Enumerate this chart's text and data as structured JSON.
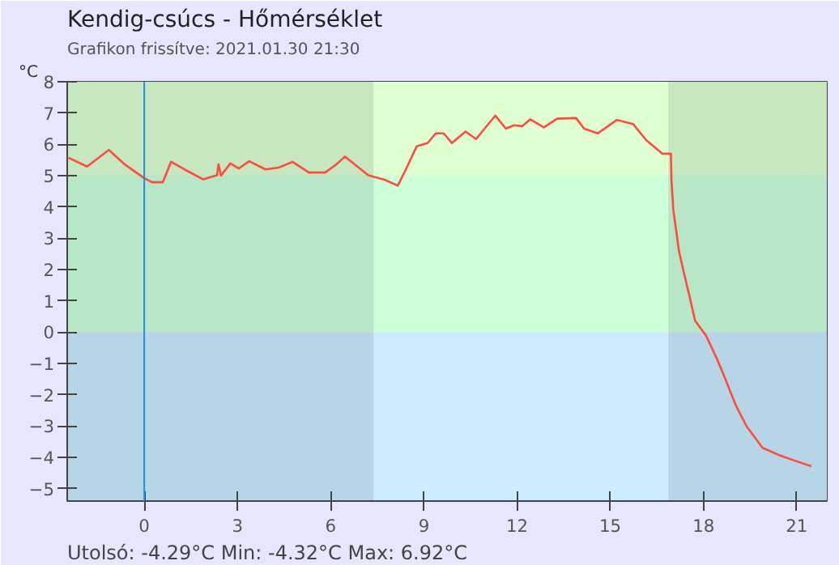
{
  "chart_data": {
    "type": "line",
    "title": "Kendig-csúcs - Hőmérséklet",
    "subtitle": "Grafikon frissítve: 2021.01.30 21:30",
    "ylabel": "°C",
    "annotations": [
      "Utolsó: -4.29°C  Min: -4.32°C  Max: 6.92°C"
    ],
    "x": [
      -2.44,
      -1.84,
      -1.14,
      -0.62,
      0,
      0.25,
      0.6,
      0.86,
      1.29,
      1.9,
      2.34,
      2.39,
      2.47,
      2.77,
      3.04,
      3.38,
      3.9,
      4.34,
      4.77,
      5.3,
      5.82,
      6.17,
      6.46,
      6.86,
      7.21,
      7.73,
      8.16,
      8.42,
      8.77,
      9.12,
      9.38,
      9.64,
      9.9,
      10.34,
      10.68,
      11.3,
      11.64,
      11.9,
      12.16,
      12.42,
      12.86,
      13.29,
      13.9,
      14.16,
      14.6,
      15.21,
      15.73,
      16.16,
      16.68,
      16.95,
      16.97,
      17.03,
      17.21,
      17.38,
      17.56,
      17.73,
      18.08,
      18.43,
      18.69,
      19.04,
      19.38,
      19.9,
      20.43,
      20.94,
      21.47
    ],
    "series": [
      {
        "color": "#ff4a3c",
        "values": [
          5.57,
          5.29,
          5.82,
          5.35,
          4.92,
          4.79,
          4.79,
          5.44,
          5.2,
          4.88,
          5.01,
          5.36,
          5.0,
          5.39,
          5.23,
          5.46,
          5.2,
          5.26,
          5.44,
          5.1,
          5.1,
          5.35,
          5.61,
          5.29,
          5.01,
          4.87,
          4.68,
          5.2,
          5.94,
          6.04,
          6.35,
          6.35,
          6.04,
          6.41,
          6.17,
          6.92,
          6.5,
          6.61,
          6.58,
          6.8,
          6.54,
          6.82,
          6.84,
          6.5,
          6.35,
          6.78,
          6.65,
          6.13,
          5.7,
          5.7,
          4.83,
          3.89,
          2.59,
          1.85,
          1.1,
          0.36,
          -0.11,
          -0.85,
          -1.47,
          -2.34,
          -3.0,
          -3.7,
          -3.93,
          -4.11,
          -4.29
        ]
      }
    ],
    "xlim": [
      -2.48,
      21.97
    ],
    "ylim": [
      -5.4,
      8
    ],
    "xticks": [
      0,
      3,
      6,
      9,
      12,
      15,
      18,
      21
    ],
    "yticks": [
      -5,
      -4,
      -3,
      -2,
      -1,
      0,
      1,
      2,
      3,
      4,
      5,
      6,
      7,
      8
    ],
    "ref_lines": [
      {
        "axis": "x",
        "value": 0,
        "label": null,
        "color": "#1e90e0"
      }
    ],
    "bands": [
      {
        "axis": "y",
        "from": 5,
        "to": 8,
        "label": null,
        "color": "#e0ffd0"
      },
      {
        "axis": "y",
        "from": 0,
        "to": 5,
        "label": null,
        "color": "#ccffd8"
      },
      {
        "axis": "y",
        "from": -5.4,
        "to": 0,
        "label": null,
        "color": "#cbebff"
      },
      {
        "axis": "x",
        "from": -2.48,
        "to": 7.38,
        "label": null,
        "color": "#5a7a7a"
      },
      {
        "axis": "x",
        "from": 16.87,
        "to": 21.97,
        "label": null,
        "color": "#5a7a7a"
      }
    ]
  }
}
